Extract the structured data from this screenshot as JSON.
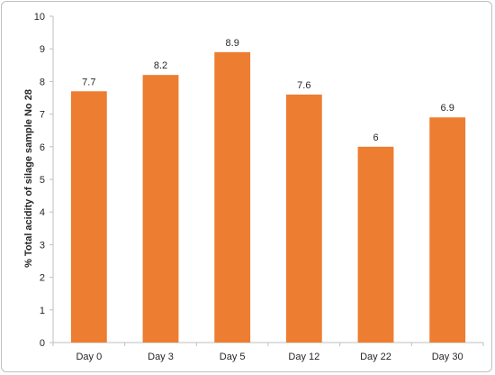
{
  "chart_data": {
    "type": "bar",
    "title": "",
    "xlabel": "",
    "ylabel": "% Total acidity of silage sample No 28",
    "categories": [
      "Day 0",
      "Day 3",
      "Day 5",
      "Day 12",
      "Day 22",
      "Day 30"
    ],
    "values": [
      7.7,
      8.2,
      8.9,
      7.6,
      6,
      6.9
    ],
    "data_labels": [
      "7.7",
      "8.2",
      "8.9",
      "7.6",
      "6",
      "6.9"
    ],
    "ylim": [
      0,
      10
    ],
    "yticks": [
      "0",
      "1",
      "2",
      "3",
      "4",
      "5",
      "6",
      "7",
      "8",
      "9",
      "10"
    ],
    "grid": false,
    "legend": "none",
    "bar_color": "#ED7D31"
  }
}
